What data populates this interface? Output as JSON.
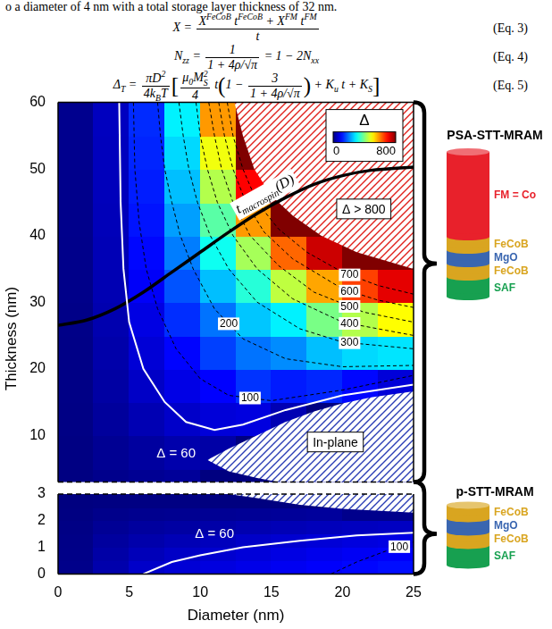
{
  "text": "o a diameter of 4 nm with a total storage layer thickness of 32 nm.",
  "equations": [
    {
      "body": [
        "X = ",
        {
          "frac": {
            "num": [
              {
                "base": "X",
                "sup": "FeCoB"
              },
              " ",
              {
                "base": "t",
                "sup": "FeCoB"
              },
              " + ",
              {
                "base": "X",
                "sup": "FM"
              },
              " ",
              {
                "base": "t",
                "sup": "FM"
              }
            ],
            "den": [
              "t"
            ]
          }
        }
      ],
      "label": "(Eq. 3)"
    },
    {
      "body": [
        {
          "base": "N",
          "sub": "zz"
        },
        " = ",
        {
          "frac": {
            "num": [
              "1"
            ],
            "den": [
              "1 + 4ρ/√π"
            ]
          }
        },
        " = 1 − 2",
        {
          "base": "N",
          "sub": "xx"
        }
      ],
      "label": "(Eq. 4)"
    },
    {
      "body": [
        {
          "base": "Δ",
          "sub": "T"
        },
        " = ",
        {
          "frac": {
            "num": [
              {
                "base": "πD",
                "sup": "2"
              }
            ],
            "den": [
              "4",
              {
                "base": "k",
                "sub": "B"
              },
              "T"
            ]
          }
        },
        {
          "big": "["
        },
        {
          "frac": {
            "num": [
              {
                "base": "μ",
                "sub": "0"
              },
              {
                "base": "M",
                "sub": "S",
                "sup": "2"
              }
            ],
            "den": [
              "4"
            ]
          }
        },
        " t",
        {
          "big": "("
        },
        "1 − ",
        {
          "frac": {
            "num": [
              "3"
            ],
            "den": [
              "1 + 4ρ/√π"
            ]
          }
        },
        {
          "big": ")"
        },
        " + ",
        {
          "base": "K",
          "sub": "u"
        },
        " t + ",
        {
          "base": "K",
          "sub": "S"
        },
        {
          "big": "]"
        }
      ],
      "label": "(Eq. 5)"
    }
  ],
  "chart_data": [
    {
      "type": "contour",
      "xlim": [
        0,
        25
      ],
      "ylim": [
        3,
        60
      ],
      "yticks": [
        10,
        20,
        30,
        40,
        50,
        60
      ],
      "tick_labels": "y",
      "y_label": "Thickness (nm)",
      "heatmap": {
        "x_edges": [
          0,
          2.5,
          5,
          7.5,
          10,
          12.5,
          15,
          17.5,
          20,
          22.5,
          25
        ],
        "y_edges": [
          3,
          5,
          10,
          15,
          20,
          25,
          30,
          35,
          40,
          45,
          50,
          55,
          60
        ],
        "values": [
          [
            2,
            10,
            15,
            20,
            0,
            0,
            0,
            0,
            0,
            0
          ],
          [
            3,
            15,
            25,
            35,
            30,
            0,
            0,
            0,
            0,
            0
          ],
          [
            4,
            22,
            40,
            58,
            70,
            75,
            40,
            0,
            0,
            0
          ],
          [
            5,
            28,
            55,
            80,
            100,
            140,
            120,
            130,
            105,
            70
          ],
          [
            6,
            33,
            68,
            102,
            150,
            190,
            210,
            250,
            270,
            280
          ],
          [
            7,
            37,
            78,
            135,
            190,
            255,
            290,
            395,
            440,
            500
          ],
          [
            8,
            40,
            95,
            165,
            250,
            330,
            450,
            570,
            650,
            720
          ],
          [
            9,
            43,
            105,
            198,
            310,
            430,
            620,
            740,
            810,
            850
          ],
          [
            10,
            45,
            115,
            225,
            370,
            580,
            800,
            870,
            900,
            930
          ],
          [
            10,
            47,
            122,
            250,
            440,
            700,
            900,
            950,
            980,
            1000
          ],
          [
            11,
            48,
            128,
            270,
            490,
            850,
            950,
            1000,
            1030,
            1050
          ],
          [
            11,
            50,
            133,
            290,
            580,
            900,
            1000,
            1050,
            1080,
            1100
          ]
        ]
      },
      "colorbar": {
        "title": "Δ",
        "range": [
          0,
          800
        ],
        "ticks": [
          0,
          800
        ]
      },
      "contours": [
        {
          "level": 60,
          "label": "Δ = 60",
          "color": "#ffffff",
          "line_style": "solid",
          "x": [
            4.3,
            4.4,
            4.6,
            5,
            6,
            7.5,
            9,
            11,
            13,
            16,
            20,
            25
          ],
          "values": [
            60,
            45,
            35,
            27,
            20,
            15,
            12,
            10.8,
            11.6,
            13.8,
            16,
            17.6
          ]
        },
        {
          "level": 100,
          "color": "#000000",
          "line_style": "dashed",
          "x": [
            5.3,
            5.4,
            5.7,
            6.2,
            7,
            8.3,
            10,
            12,
            15,
            20,
            25
          ],
          "values": [
            60,
            50,
            42,
            35,
            29,
            23,
            18.5,
            16,
            15.2,
            16.8,
            19
          ]
        },
        {
          "level": 200,
          "color": "#000000",
          "line_style": "dashed",
          "x": [
            7,
            7.2,
            7.5,
            8,
            8.6,
            9.5,
            11,
            13,
            16,
            20,
            25
          ],
          "values": [
            60,
            55,
            50,
            45,
            40,
            35,
            29,
            24.5,
            21.5,
            20.3,
            20.5
          ]
        },
        {
          "level": 300,
          "color": "#000000",
          "line_style": "dashed",
          "x": [
            8.5,
            8.8,
            9.2,
            9.8,
            10.7,
            12,
            14,
            17,
            20,
            25
          ],
          "values": [
            60,
            55,
            50,
            45,
            40,
            35,
            30,
            26,
            24,
            23
          ]
        },
        {
          "level": 400,
          "color": "#000000",
          "line_style": "dashed",
          "x": [
            9.7,
            10,
            10.5,
            11.2,
            12.3,
            14,
            16.5,
            20,
            25
          ],
          "values": [
            60,
            55,
            50,
            45,
            40,
            35,
            30.5,
            27,
            25
          ]
        },
        {
          "level": 500,
          "color": "#000000",
          "line_style": "dashed",
          "x": [
            10.6,
            11,
            11.5,
            12.3,
            13.5,
            15.5,
            18,
            21.5,
            25
          ],
          "values": [
            60,
            55,
            50,
            45,
            40,
            35.5,
            31.5,
            28.5,
            27
          ]
        },
        {
          "level": 600,
          "color": "#000000",
          "line_style": "dashed",
          "x": [
            11.3,
            11.7,
            12.3,
            13.2,
            14.5,
            16.5,
            20,
            22.5,
            25
          ],
          "values": [
            60,
            55,
            50,
            45,
            40.5,
            36.5,
            32,
            30.3,
            29.2
          ]
        },
        {
          "level": 700,
          "color": "#000000",
          "line_style": "dashed",
          "x": [
            11.9,
            12.3,
            13,
            14,
            15.5,
            17.5,
            20,
            22.5,
            25
          ],
          "values": [
            60,
            55,
            50,
            45,
            41,
            37.5,
            34.5,
            32.5,
            31.2
          ]
        }
      ],
      "curves": [
        {
          "label": {
            "base": "t",
            "sub": "macrospin",
            "suffix": "(D)"
          },
          "color": "#000000",
          "line_style": "solid",
          "x": [
            0,
            2,
            4,
            6,
            8,
            10,
            12,
            14,
            16,
            18,
            20,
            22,
            25
          ],
          "values": [
            26.5,
            27.3,
            29,
            31.5,
            34.5,
            37.5,
            40.5,
            43.3,
            45.7,
            47.7,
            49,
            49.8,
            50.3
          ]
        }
      ],
      "regions": [
        {
          "label": "Δ > 800",
          "color": "#e0201b",
          "x": [
            12.4,
            13,
            13.8,
            15,
            16.5,
            18.5,
            21,
            25,
            25
          ],
          "values": [
            60,
            55,
            50,
            46,
            43,
            40,
            37.5,
            35,
            60
          ]
        },
        {
          "label": "In-plane",
          "color": "#2a3db5",
          "x": [
            10.5,
            12,
            14,
            16,
            18,
            20,
            22,
            25,
            25,
            15.5,
            14,
            12
          ],
          "values": [
            6.3,
            8,
            10,
            12,
            13.6,
            14.8,
            15.7,
            16.6,
            3,
            3,
            3.6,
            4.6
          ]
        }
      ]
    },
    {
      "type": "contour",
      "xlim": [
        0,
        25
      ],
      "ylim": [
        0,
        3
      ],
      "xticks": [
        0,
        5,
        10,
        15,
        20,
        25
      ],
      "yticks": [
        0,
        1,
        2,
        3
      ],
      "x_label": "Diameter (nm)",
      "heatmap": {
        "x_edges": [
          0,
          2.5,
          5,
          7.5,
          10,
          12.5,
          15,
          17.5,
          20,
          22.5,
          25
        ],
        "y_edges": [
          0,
          0.5,
          1,
          1.5,
          2,
          2.5,
          3
        ],
        "values": [
          [
            8,
            35,
            58,
            67,
            75,
            82,
            90,
            97,
            104,
            110
          ],
          [
            7,
            30,
            45,
            55,
            62,
            70,
            78,
            85,
            92,
            97
          ],
          [
            6,
            24,
            34,
            42,
            48,
            57,
            63,
            69,
            74,
            78
          ],
          [
            4,
            17,
            24,
            28,
            32,
            38,
            43,
            47,
            50,
            52
          ],
          [
            2,
            9,
            12,
            14,
            16,
            18,
            20,
            22,
            10,
            10
          ],
          [
            0,
            2,
            3,
            3,
            0,
            0,
            0,
            0,
            0,
            0
          ]
        ]
      },
      "contours": [
        {
          "level": 60,
          "label": "Δ = 60",
          "color": "#ffffff",
          "line_style": "solid",
          "x": [
            6,
            8,
            10,
            13,
            17,
            21,
            25
          ],
          "values": [
            0,
            0.45,
            0.7,
            1,
            1.25,
            1.45,
            1.55
          ]
        },
        {
          "level": 100,
          "color": "#000000",
          "line_style": "dashed",
          "x": [
            19.2,
            21,
            23,
            25
          ],
          "values": [
            0,
            0.45,
            0.85,
            1.2
          ]
        }
      ],
      "regions": [
        {
          "color": "#2a3db5",
          "x": [
            12,
            14,
            17,
            20,
            25,
            25
          ],
          "values": [
            3,
            2.85,
            2.6,
            2.45,
            2.3,
            3
          ]
        }
      ]
    }
  ],
  "stacks": [
    {
      "title": "PSA-STT-MRAM",
      "layers": [
        {
          "label": "FM = Co",
          "color": "#e8212b"
        },
        {
          "label": "FeCoB",
          "color": "#d9a520"
        },
        {
          "label": "MgO",
          "color": "#3a66b0"
        },
        {
          "label": "FeCoB",
          "color": "#d9a520"
        },
        {
          "label": "SAF",
          "color": "#17a050"
        }
      ]
    },
    {
      "title": "p-STT-MRAM",
      "layers": [
        {
          "label": "FeCoB",
          "color": "#d9a520"
        },
        {
          "label": "MgO",
          "color": "#3a66b0"
        },
        {
          "label": "FeCoB",
          "color": "#d9a520"
        },
        {
          "label": "SAF",
          "color": "#17a050"
        }
      ]
    }
  ]
}
